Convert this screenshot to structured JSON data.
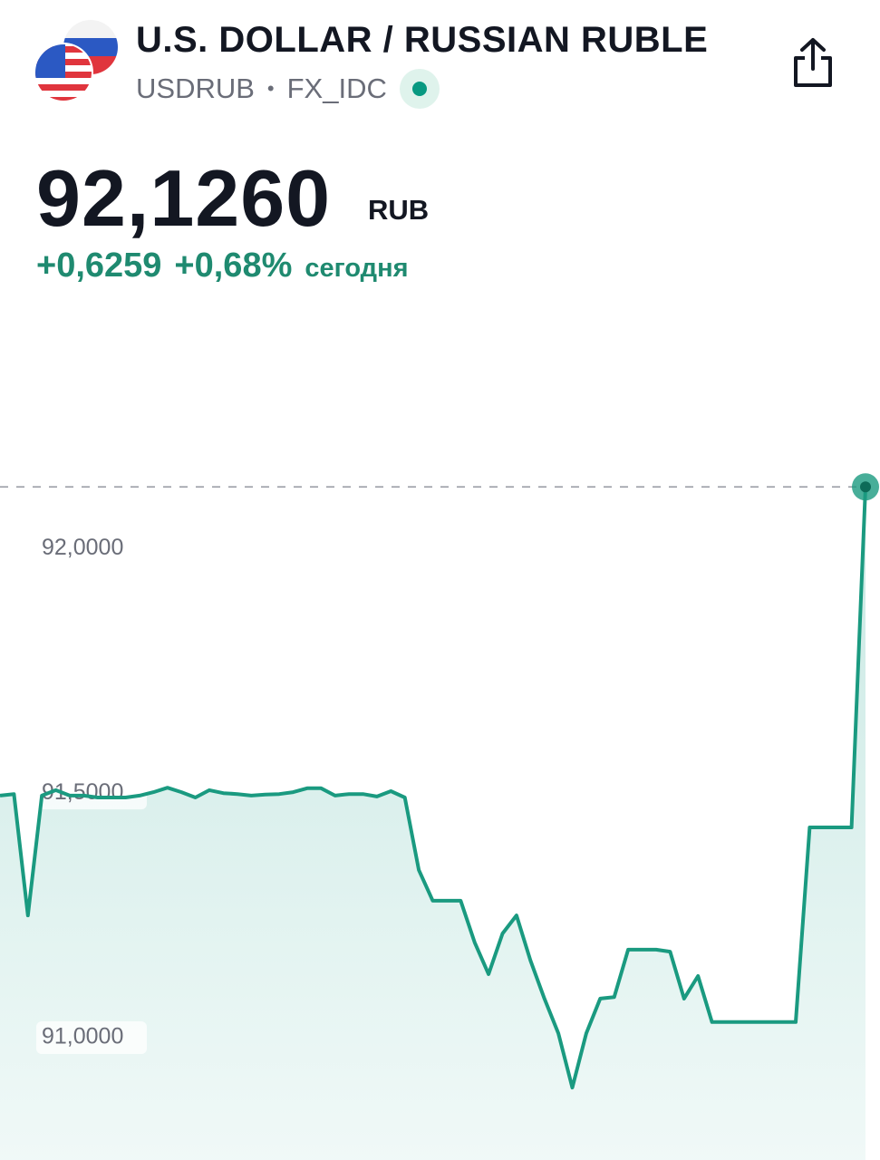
{
  "header": {
    "title": "U.S. DOLLAR / RUSSIAN RUBLE",
    "symbol": "USDRUB",
    "separator": "•",
    "exchange": "FX_IDC"
  },
  "quote": {
    "price": "92,1260",
    "currency": "RUB",
    "change": "+0,6259",
    "change_percent": "+0,68%",
    "period": "сегодня"
  },
  "chart_data": {
    "type": "line",
    "color": "#1a9a80",
    "values": [
      91.495,
      91.498,
      91.25,
      91.495,
      91.506,
      91.495,
      91.495,
      91.491,
      91.491,
      91.491,
      91.495,
      91.502,
      91.511,
      91.502,
      91.491,
      91.506,
      91.5,
      91.498,
      91.495,
      91.497,
      91.498,
      91.502,
      91.51,
      91.51,
      91.495,
      91.498,
      91.498,
      91.493,
      91.504,
      91.491,
      91.343,
      91.28,
      91.28,
      91.28,
      91.195,
      91.13,
      91.213,
      91.25,
      91.158,
      91.08,
      91.009,
      90.898,
      91.009,
      91.08,
      91.083,
      91.18,
      91.18,
      91.18,
      91.176,
      91.08,
      91.126,
      91.032,
      91.032,
      91.032,
      91.032,
      91.032,
      91.032,
      91.032,
      91.43,
      91.43,
      91.43,
      91.43,
      92.126
    ],
    "ylim": [
      90.75,
      92.51
    ],
    "yticks": [
      {
        "value": 91,
        "label": "91,0000"
      },
      {
        "value": 91.5,
        "label": "91,5000"
      },
      {
        "value": 92,
        "label": "92,0000"
      }
    ]
  }
}
